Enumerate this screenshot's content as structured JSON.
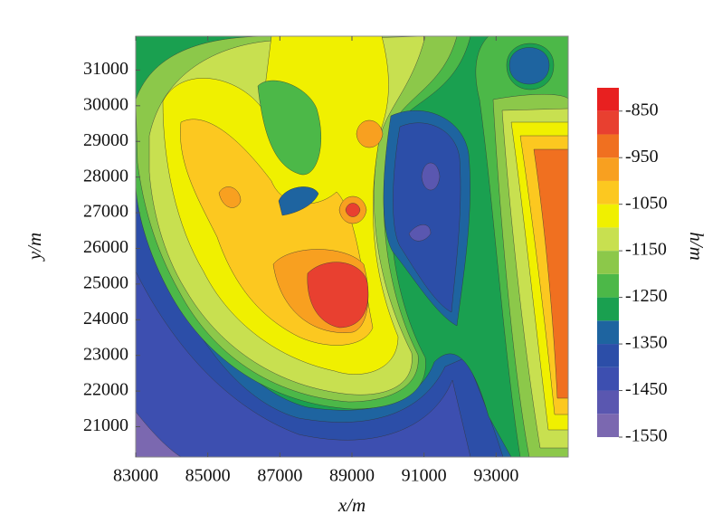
{
  "chart_data": {
    "type": "contour",
    "xlabel": "x/m",
    "ylabel": "y/m",
    "xlim": [
      83000,
      95000
    ],
    "ylim": [
      20150,
      31950
    ],
    "xticks": [
      83000,
      85000,
      87000,
      89000,
      91000,
      93000
    ],
    "yticks": [
      21000,
      22000,
      23000,
      24000,
      25000,
      26000,
      27000,
      28000,
      29000,
      30000,
      31000
    ],
    "colorbar": {
      "label": "h/m",
      "lim": [
        -1550,
        -800
      ],
      "ticks": [
        -850,
        -950,
        -1050,
        -1150,
        -1250,
        -1350,
        -1450,
        -1550
      ],
      "levels": [
        -1550,
        -1500,
        -1450,
        -1400,
        -1350,
        -1300,
        -1250,
        -1200,
        -1150,
        -1100,
        -1050,
        -1000,
        -950,
        -900,
        -850,
        -800
      ],
      "colors": [
        "#7b68b0",
        "#5a57b0",
        "#3d4fb0",
        "#2c4ea8",
        "#1e64a0",
        "#1aa050",
        "#4cb848",
        "#8cc84a",
        "#c8e050",
        "#f0f000",
        "#fcc820",
        "#f8a020",
        "#f07020",
        "#e84030",
        "#e82020"
      ]
    }
  }
}
